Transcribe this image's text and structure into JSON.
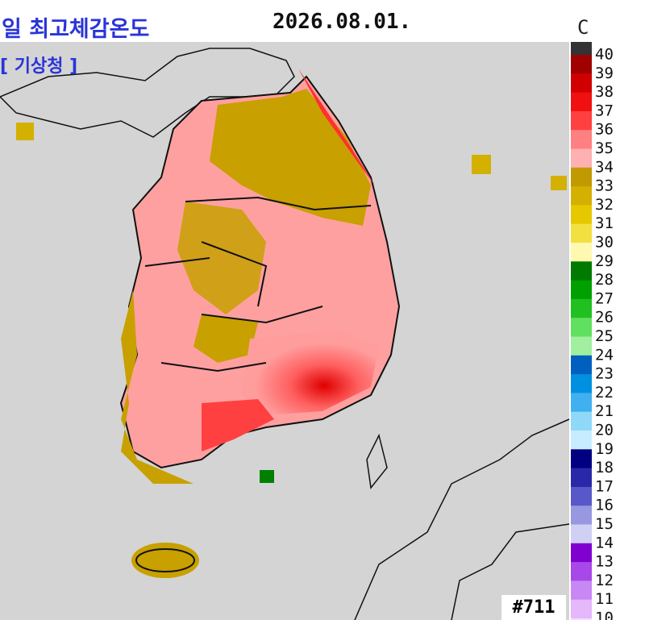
{
  "header": {
    "title": "일 최고체감온도",
    "date": "2026.08.01.",
    "source": "[ 기상청 ]"
  },
  "legend": {
    "unit": "C",
    "levels": [
      {
        "value": 40,
        "color": "#a00000"
      },
      {
        "value": 39,
        "color": "#d00000"
      },
      {
        "value": 38,
        "color": "#f01010"
      },
      {
        "value": 37,
        "color": "#ff4040"
      },
      {
        "value": 36,
        "color": "#ff8080"
      },
      {
        "value": 35,
        "color": "#ffb0b0"
      },
      {
        "value": 34,
        "color": "#c09a00"
      },
      {
        "value": 33,
        "color": "#d4b000"
      },
      {
        "value": 32,
        "color": "#e6c800"
      },
      {
        "value": 31,
        "color": "#f2e040"
      },
      {
        "value": 30,
        "color": "#fff8b0"
      },
      {
        "value": 29,
        "color": "#007a00"
      },
      {
        "value": 28,
        "color": "#00a000"
      },
      {
        "value": 27,
        "color": "#20c020"
      },
      {
        "value": 26,
        "color": "#60e060"
      },
      {
        "value": 25,
        "color": "#a0f0a0"
      },
      {
        "value": 24,
        "color": "#0060c0"
      },
      {
        "value": 23,
        "color": "#0090e0"
      },
      {
        "value": 22,
        "color": "#40b0f0"
      },
      {
        "value": 21,
        "color": "#90d8f8"
      },
      {
        "value": 20,
        "color": "#c8ecff"
      },
      {
        "value": 19,
        "color": "#000080"
      },
      {
        "value": 18,
        "color": "#2828a8"
      },
      {
        "value": 17,
        "color": "#5858c8"
      },
      {
        "value": 16,
        "color": "#9898e0"
      },
      {
        "value": 15,
        "color": "#d0d0f4"
      },
      {
        "value": 14,
        "color": "#8000d0"
      },
      {
        "value": 13,
        "color": "#a848e8"
      },
      {
        "value": 12,
        "color": "#c888f4"
      },
      {
        "value": 11,
        "color": "#e4b8fa"
      },
      {
        "value": 10,
        "color": "#f4dcff"
      }
    ]
  },
  "badge": "#711"
}
